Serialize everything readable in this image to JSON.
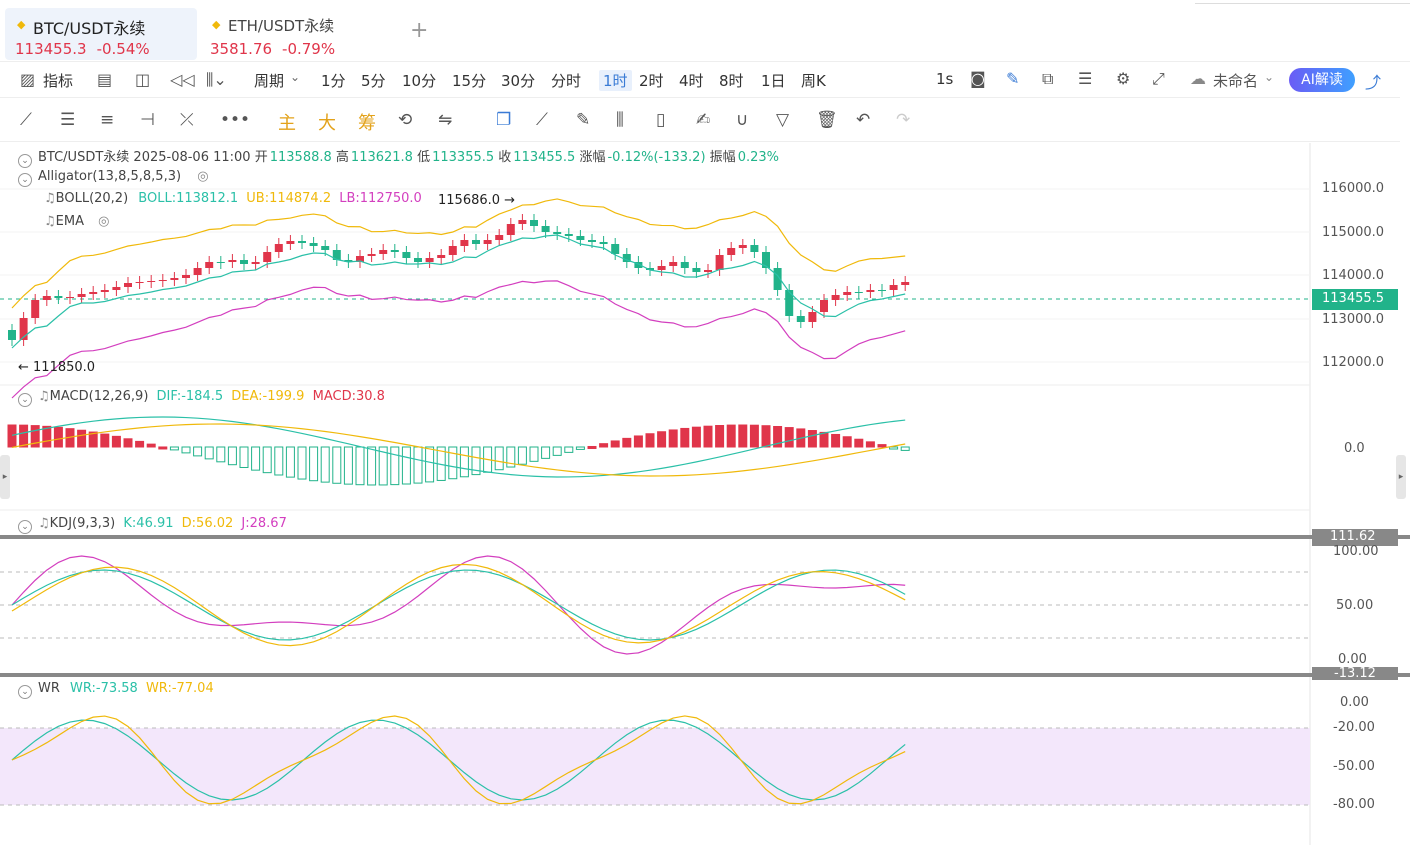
{
  "tabs": [
    {
      "name": "BTC/USDT永续",
      "price": "113455.3",
      "change": "-0.54%"
    },
    {
      "name": "ETH/USDT永续",
      "price": "3581.76",
      "change": "-0.79%"
    }
  ],
  "toolbar": {
    "indicators": "指标",
    "period": "周期",
    "intervals": [
      "1分",
      "5分",
      "10分",
      "15分",
      "30分",
      "分时",
      "1时",
      "2时",
      "4时",
      "8时",
      "1日",
      "周K"
    ],
    "active_interval": "1时",
    "refresh": "1s",
    "layout_name": "未命名",
    "ai_label": "AI解读"
  },
  "drawtools": {
    "labels": [
      "主",
      "大",
      "筹"
    ]
  },
  "ohlc_info": {
    "symbol": "BTC/USDT永续",
    "datetime": "2025-08-06 11:00",
    "open_label": "开",
    "open": "113588.8",
    "high_label": "高",
    "high": "113621.8",
    "low_label": "低",
    "low": "113355.5",
    "close_label": "收",
    "close": "113455.5",
    "chg_label": "涨幅",
    "chg": "-0.12%(-133.2)",
    "amp_label": "振幅",
    "amp": "0.23%"
  },
  "indicators": {
    "alligator": "Alligator(13,8,5,8,5,3)",
    "boll": {
      "label": "BOLL(20,2)",
      "boll": "BOLL:113812.1",
      "ub": "UB:114874.2",
      "lb": "LB:112750.0"
    },
    "ema": "EMA",
    "macd": {
      "label": "MACD(12,26,9)",
      "dif": "DIF:-184.5",
      "dea": "DEA:-199.9",
      "macd": "MACD:30.8"
    },
    "kdj": {
      "label": "KDJ(9,3,3)",
      "k": "K:46.91",
      "d": "D:56.02",
      "j": "J:28.67"
    },
    "wr": {
      "label": "WR",
      "wr1": "WR:-73.58",
      "wr2": "WR:-77.04"
    }
  },
  "price_axis": [
    "116000.0",
    "115000.0",
    "114000.0",
    "113000.0",
    "112000.0"
  ],
  "current_price": "113455.5",
  "markers": {
    "high": "115686.0 →",
    "low": "← 111850.0"
  },
  "macd_axis": [
    "0.0"
  ],
  "kdj_axis": [
    "111.62",
    "100.00",
    "50.00",
    "0.00",
    "-13.12"
  ],
  "wr_axis": [
    "0.00",
    "-20.00",
    "-50.00",
    "-80.00"
  ],
  "colors": {
    "up": "#e0354a",
    "down": "#21b38a",
    "boll_mid": "#2bc0a8",
    "boll_ub": "#f0b90b",
    "boll_lb": "#d33fbf",
    "accent": "#3a7bd5"
  }
}
